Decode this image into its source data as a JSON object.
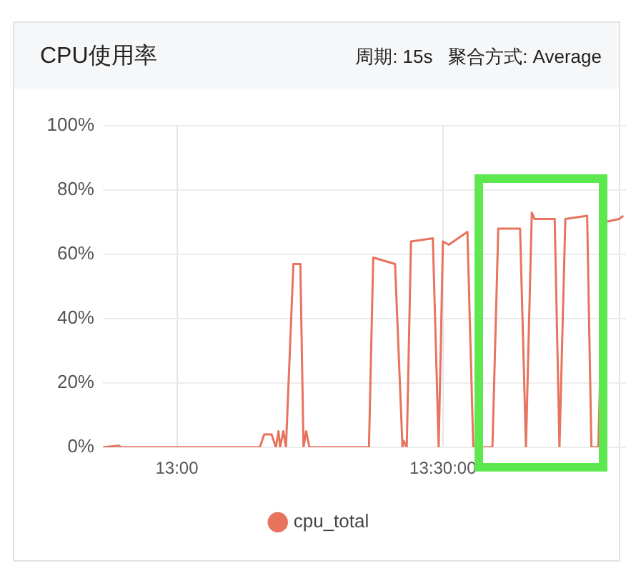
{
  "chart_data": {
    "type": "line",
    "title": "CPU使用率",
    "subtitle": "周期: 15s   聚合方式: Average",
    "x": [
      12.861,
      12.891,
      12.895,
      13.156,
      13.164,
      13.178,
      13.186,
      13.191,
      13.194,
      13.2,
      13.205,
      13.219,
      13.224,
      13.232,
      13.238,
      13.243,
      13.249,
      13.254,
      13.361,
      13.369,
      13.41,
      13.424,
      13.426,
      13.432,
      13.44,
      13.481,
      13.492,
      13.5,
      13.511,
      13.546,
      13.557,
      13.593,
      13.604,
      13.645,
      13.656,
      13.667,
      13.672,
      13.71,
      13.719,
      13.73,
      13.771,
      13.779,
      13.792,
      13.803,
      13.831,
      13.839
    ],
    "series": [
      {
        "name": "cpu_total",
        "color": "#e8735e",
        "values": [
          0,
          0.5,
          0,
          0,
          4,
          4,
          0,
          5,
          0,
          5,
          0,
          57,
          57,
          57,
          0,
          5,
          0,
          0,
          0,
          59,
          57,
          0,
          2,
          0,
          64,
          65,
          0,
          64,
          63,
          67,
          0,
          0,
          68,
          68,
          0,
          73,
          71,
          71,
          0,
          71,
          72,
          0,
          0,
          70,
          71,
          72
        ]
      }
    ],
    "xlim": [
      12.861,
      13.844
    ],
    "xticks": [
      {
        "value": 13,
        "label": "13:00"
      },
      {
        "value": 13.5,
        "label": "13:30:00"
      }
    ],
    "ylim": [
      0,
      100
    ],
    "yticks": [
      {
        "value": 0,
        "label": "0%"
      },
      {
        "value": 20,
        "label": "20%"
      },
      {
        "value": 40,
        "label": "40%"
      },
      {
        "value": 60,
        "label": "60%"
      },
      {
        "value": 80,
        "label": "80%"
      },
      {
        "value": 100,
        "label": "100%"
      }
    ],
    "grid": true,
    "legend": "bottom",
    "marker": "none",
    "line_style": "solid"
  }
}
